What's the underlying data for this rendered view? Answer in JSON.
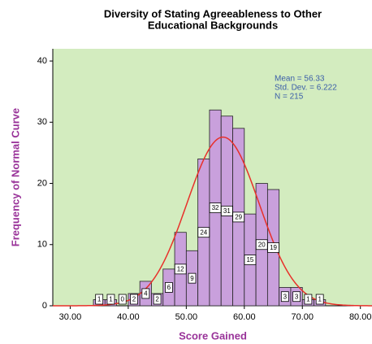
{
  "chart_data": {
    "type": "histogram",
    "title": "Diversity of Stating Agreeableness to Other",
    "subtitle": "Educational Backgrounds",
    "x_label": "Score Gained",
    "y_label": "Frequency of Normal Curve",
    "bins": [
      34,
      36,
      38,
      40,
      42,
      44,
      46,
      48,
      50,
      52,
      54,
      56,
      58,
      60,
      62,
      64,
      66,
      68,
      70,
      72,
      74
    ],
    "values": [
      1,
      1,
      0,
      2,
      4,
      2,
      6,
      12,
      9,
      24,
      32,
      31,
      29,
      15,
      20,
      19,
      3,
      3,
      1,
      1
    ],
    "color": "#c9a0dc",
    "curve_color": "#e8302a",
    "stats": {
      "mean": {
        "value": 56.33,
        "label": "Mean = 56.33"
      },
      "std_dev": {
        "value": 6.222,
        "label": "Std. Dev. = 6.222"
      },
      "n": {
        "value": 215,
        "label": "N = 215"
      }
    },
    "xlim": [
      27,
      82
    ],
    "ylim": [
      0,
      42
    ],
    "xticks": [
      {
        "value": 30,
        "label": "30.00"
      },
      {
        "value": 40,
        "label": "40.00"
      },
      {
        "value": 50,
        "label": "50.00"
      },
      {
        "value": 60,
        "label": "60.00"
      },
      {
        "value": 70,
        "label": "70.00"
      },
      {
        "value": 80,
        "label": "80.00"
      }
    ],
    "yticks": [
      0,
      10,
      20,
      30,
      40
    ]
  }
}
